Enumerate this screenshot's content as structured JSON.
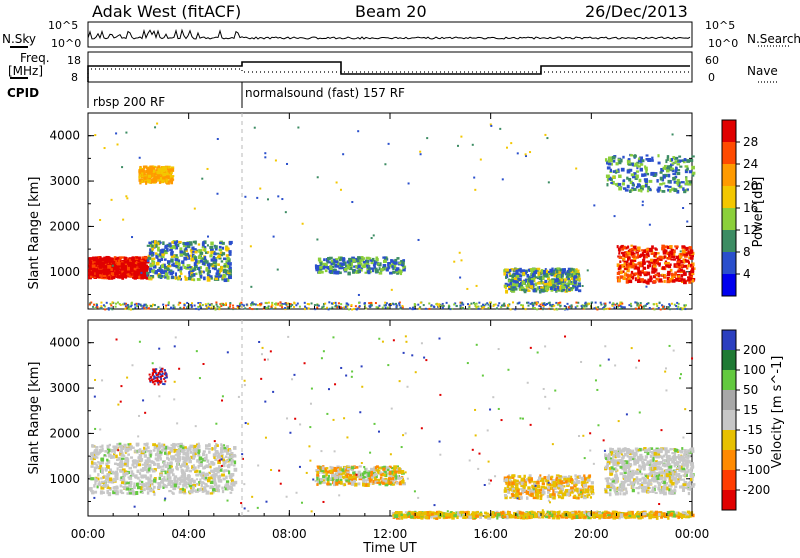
{
  "header": {
    "title": "Adak West (fitACF)",
    "beam": "Beam 20",
    "date": "26/Dec/2013"
  },
  "top_panels": {
    "nsky_label": "N.Sky",
    "nsearch_label": "N.Search",
    "freq_label_1": "Freq.",
    "freq_label_2": "[MHz]",
    "nave_label": "Nave",
    "cpid_label": "CPID",
    "left_ticks_1": [
      "10^5",
      "10^0"
    ],
    "right_ticks_1": [
      "10^5",
      "10^0"
    ],
    "left_ticks_2": [
      "18",
      "8"
    ],
    "right_ticks_2": [
      "60",
      "0"
    ],
    "cpid_segments": [
      {
        "label": "rbsp 200 RF",
        "start_hour": 0
      },
      {
        "label": "normalsound (fast) 157 RF",
        "start_hour": 6
      }
    ]
  },
  "chart_data": [
    {
      "type": "heatmap",
      "name": "power",
      "title": "",
      "xlabel": "",
      "ylabel": "Slant Range [km]",
      "xlim": [
        0,
        24
      ],
      "ylim": [
        180,
        4500
      ],
      "y_ticks": [
        1000,
        2000,
        3000,
        4000
      ],
      "colorbar": {
        "label": "Power [dB]",
        "ticks": [
          "28",
          "24",
          "20",
          "16",
          "12",
          "8",
          "4"
        ],
        "colors": [
          "#e00000",
          "#ff4a00",
          "#ff9a00",
          "#f3c700",
          "#8bcf3a",
          "#3c8c63",
          "#2a4fcc",
          "#0000ee"
        ]
      },
      "blobs": [
        {
          "hour_start": 0.0,
          "hour_end": 2.3,
          "range_start": 900,
          "range_end": 1350,
          "level": "28+"
        },
        {
          "hour_start": 2.3,
          "hour_end": 5.6,
          "range_start": 850,
          "range_end": 1700,
          "level": "8-20"
        },
        {
          "hour_start": 2.0,
          "hour_end": 3.3,
          "range_start": 3000,
          "range_end": 3350,
          "level": "16-24"
        },
        {
          "hour_start": 9.0,
          "hour_end": 12.5,
          "range_start": 1000,
          "range_end": 1350,
          "level": "4-12"
        },
        {
          "hour_start": 16.5,
          "hour_end": 19.5,
          "range_start": 600,
          "range_end": 1100,
          "level": "8-20"
        },
        {
          "hour_start": 21.0,
          "hour_end": 24.0,
          "range_start": 800,
          "range_end": 1600,
          "level": "24-28"
        },
        {
          "hour_start": 20.5,
          "hour_end": 24.0,
          "range_start": 2800,
          "range_end": 3600,
          "level": "4-12"
        }
      ]
    },
    {
      "type": "heatmap",
      "name": "velocity",
      "title": "",
      "xlabel": "Time UT",
      "ylabel": "Slant Range [km]",
      "xlim": [
        0,
        24
      ],
      "ylim": [
        180,
        4500
      ],
      "y_ticks": [
        1000,
        2000,
        3000,
        4000
      ],
      "x_ticks": [
        "00:00",
        "04:00",
        "08:00",
        "12:00",
        "16:00",
        "20:00",
        "00:00"
      ],
      "colorbar": {
        "label": "Velocity [m s^-1]",
        "ticks": [
          "200",
          "100",
          "50",
          "15",
          "-15",
          "-50",
          "-100",
          "-200"
        ],
        "colors": [
          "#2b3fbf",
          "#1f7a34",
          "#63c93f",
          "#a8a8a8",
          "#c7c7c7",
          "#e7c000",
          "#ff8a00",
          "#ff3c00",
          "#e00000"
        ]
      },
      "blobs": [
        {
          "hour_start": 0.0,
          "hour_end": 5.8,
          "range_start": 700,
          "range_end": 1800,
          "level": "ground scatter"
        },
        {
          "hour_start": 9.0,
          "hour_end": 12.5,
          "range_start": 900,
          "range_end": 1300,
          "level": "mixed"
        },
        {
          "hour_start": 16.5,
          "hour_end": 20.0,
          "range_start": 600,
          "range_end": 1100,
          "level": "orange/gray"
        },
        {
          "hour_start": 20.5,
          "hour_end": 24.0,
          "range_start": 700,
          "range_end": 1700,
          "level": "ground scatter"
        },
        {
          "hour_start": 12.0,
          "hour_end": 24.0,
          "range_start": 180,
          "range_end": 300,
          "level": "orange low range"
        }
      ]
    }
  ]
}
